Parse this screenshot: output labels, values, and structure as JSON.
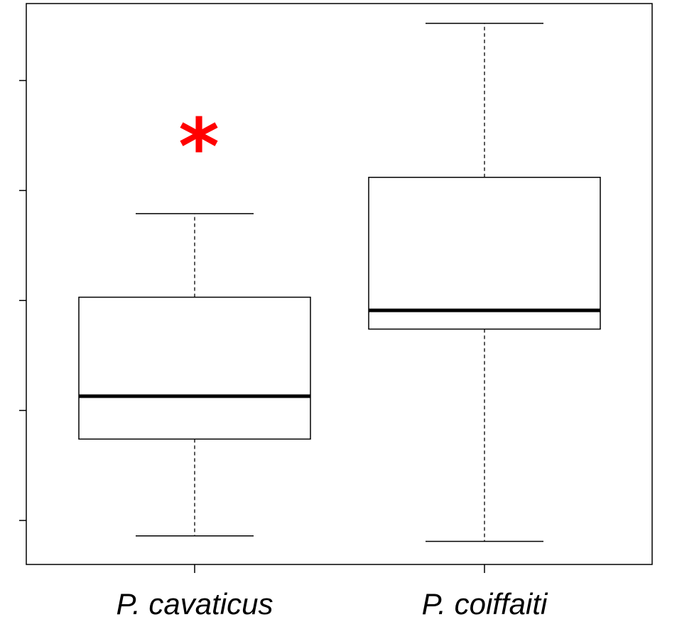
{
  "chart_data": {
    "type": "box",
    "categories": [
      "P. cavaticus",
      "P. coiffaiti"
    ],
    "boxes": [
      {
        "min": 0.86,
        "q1": 1.74,
        "median": 2.13,
        "q3": 3.03,
        "max": 3.79
      },
      {
        "min": 0.81,
        "q1": 2.74,
        "median": 2.91,
        "q3": 4.12,
        "max": 5.52
      }
    ],
    "annotations": [
      {
        "text": "*",
        "color": "#ff0000"
      }
    ],
    "ylim": [
      0.6,
      5.7
    ],
    "yticks": [
      1,
      2,
      3,
      4,
      5
    ],
    "color": "#000000"
  }
}
